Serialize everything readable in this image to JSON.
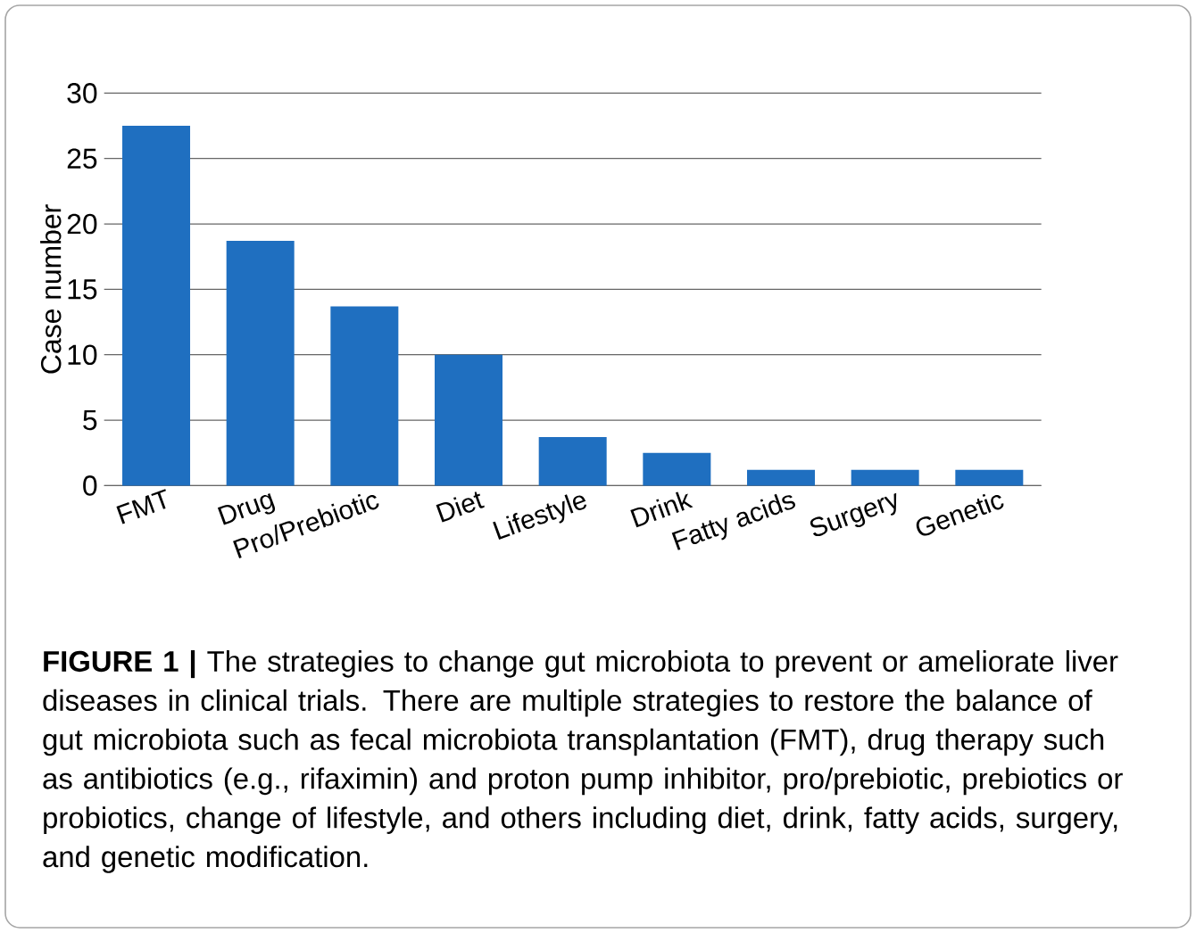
{
  "chart_data": {
    "type": "bar",
    "ylabel": "Case number",
    "categories": [
      "FMT",
      "Drug",
      "Pro/Prebiotic",
      "Diet",
      "Lifestyle",
      "Drink",
      "Fatty acids",
      "Surgery",
      "Genetic"
    ],
    "values": [
      27.5,
      18.7,
      13.7,
      10,
      3.7,
      2.5,
      1.2,
      1.2,
      1.2
    ],
    "color": "#1f6fc0",
    "ylim": [
      0,
      30
    ],
    "yticks": [
      0,
      5,
      10,
      15,
      20,
      25,
      30
    ],
    "grid": "y",
    "annotations": [
      "**FIGURE 1 |** The strategies to change gut microbiota to prevent or ameliorate liver diseases in clinical trials. There are multiple strategies to restore the balance of gut microbiota such as fecal microbiota transplantation (FMT), drug therapy such as antibiotics (e.g., rifaximin) and proton pump inhibitor, pro/prebiotic, prebiotics or probiotics, change of lifestyle, and others including diet, drink, fatty acids, surgery, and genetic modification."
    ]
  }
}
